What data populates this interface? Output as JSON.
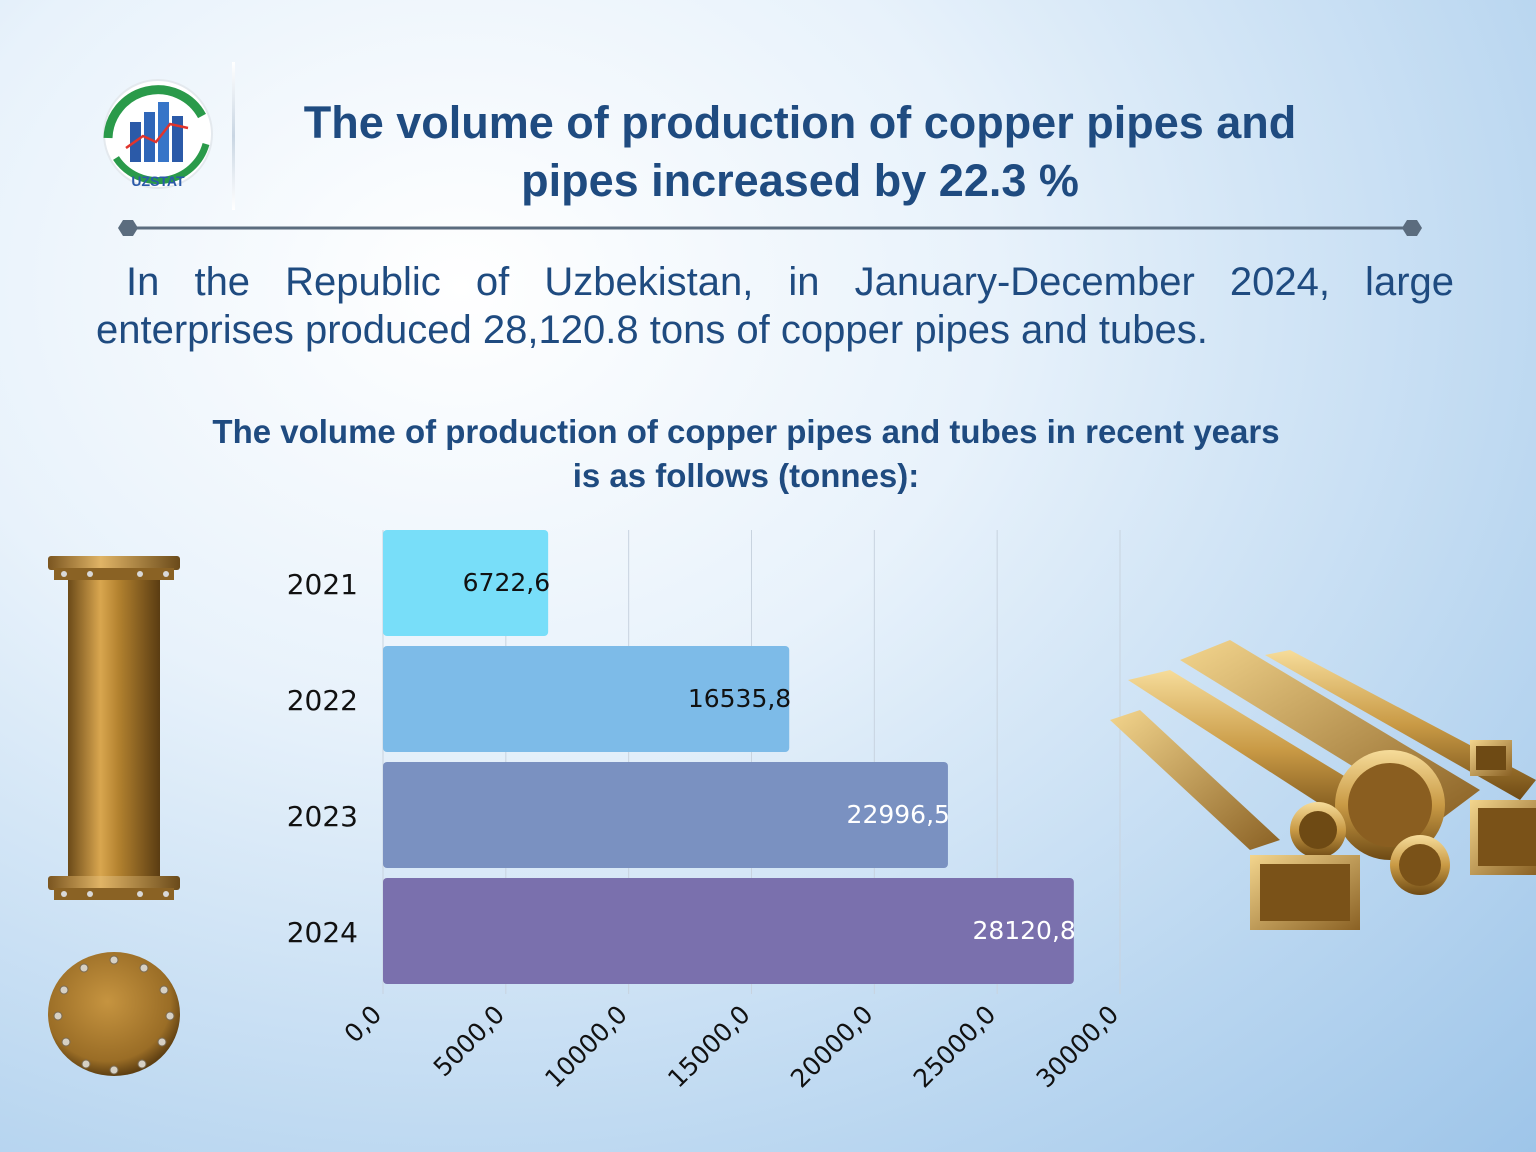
{
  "logo": {
    "text": "UZSTAT",
    "icon": "uzstat-logo-icon"
  },
  "headline": {
    "line1": "The volume of production of copper pipes and",
    "line2": "pipes increased by 22.3 %"
  },
  "lead_text": "In the Republic of Uzbekistan, in January-December 2024, large enterprises produced 28,120.8 tons of copper pipes and tubes.",
  "colors": {
    "title": "#1f4b80",
    "bar_2021": "#78def9",
    "bar_2022": "#7dbbe8",
    "bar_2023": "#7a91c1",
    "bar_2024": "#7a70ad"
  },
  "chart_data": {
    "type": "bar",
    "orientation": "horizontal",
    "title": "The volume of production of copper pipes and tubes in recent years is as follows (tonnes):",
    "categories": [
      "2021",
      "2022",
      "2023",
      "2024"
    ],
    "values": [
      6722.6,
      16535.8,
      22996.5,
      28120.8
    ],
    "value_labels": [
      "6722,6",
      "16535,8",
      "22996,5",
      "28120,8"
    ],
    "xlim": [
      0,
      30000
    ],
    "x_ticks": [
      0,
      5000,
      10000,
      15000,
      20000,
      25000,
      30000
    ],
    "x_tick_labels": [
      "0,0",
      "5000,0",
      "10000,0",
      "15000,0",
      "20000,0",
      "25000,0",
      "30000,0"
    ],
    "grid": true,
    "legend": "none"
  }
}
